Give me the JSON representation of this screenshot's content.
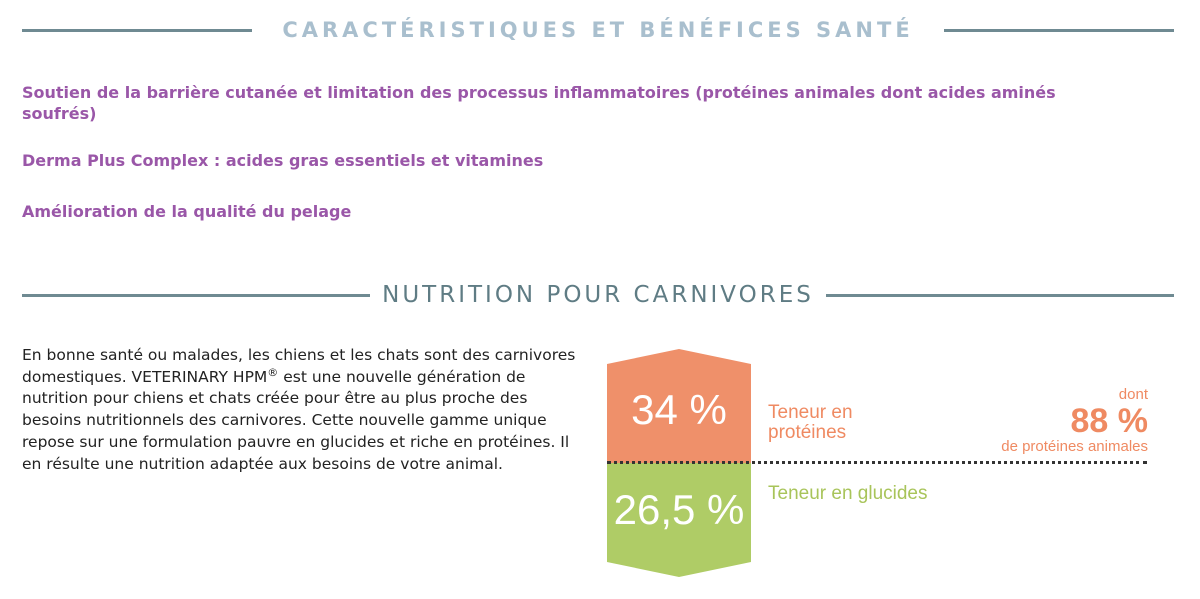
{
  "section1": {
    "title": "CARACTÉRISTIQUES ET BÉNÉFICES SANTÉ",
    "benefits": [
      "Soutien de la barrière cutanée et limitation des processus inflammatoires (protéines animales dont acides aminés soufrés)",
      "Derma Plus Complex : acides gras essentiels et vitamines",
      "Amélioration de la qualité du pelage"
    ]
  },
  "section2": {
    "title": "NUTRITION POUR CARNIVORES",
    "description": {
      "part1": "En bonne santé ou malades, les chiens et les chats sont des carnivores domestiques. VETERINARY HPM",
      "registered": "®",
      "part2": " est une nouvelle génération de nutrition pour chiens et chats créée pour être au plus proche des besoins nutritionnels des carnivores. Cette nouvelle gamme unique repose sur une formulation pauvre en glucides et riche en protéines. Il en résulte une nutrition adaptée aux besoins de votre animal."
    },
    "protein": {
      "value": "34 %",
      "label": "Teneur en protéines",
      "animal_prefix": "dont",
      "animal_value": "88 %",
      "animal_label": "de protéines animales"
    },
    "carbs": {
      "value": "26,5 %",
      "label": "Teneur en glucides"
    }
  },
  "colors": {
    "rule_line": "#6f8a92",
    "section1_title": "#a9bfce",
    "section2_title": "#5f7c84",
    "benefit_text": "#9a57a8",
    "protein_orange": "#ef906a",
    "carb_green": "#afcc66"
  }
}
